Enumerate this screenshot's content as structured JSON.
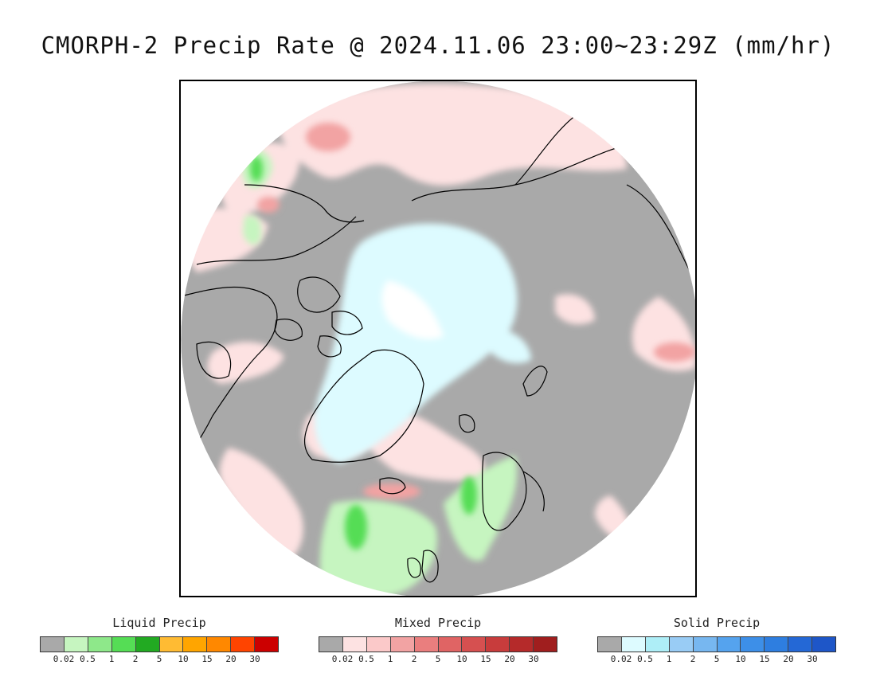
{
  "title": "CMORPH-2 Precip Rate @ 2024.11.06 23:00~23:29Z (mm/hr)",
  "map": {
    "projection": "north-polar-stereographic",
    "background_color": "#a9a9a9",
    "coastline_color": "#000000"
  },
  "legends": [
    {
      "key": "liquid",
      "title": "Liquid Precip",
      "colors": [
        "#a9a9a9",
        "#c6f5c0",
        "#8ee88a",
        "#55dd55",
        "#22aa22",
        "#ffbb33",
        "#ffa500",
        "#ff8800",
        "#ff4400",
        "#cc0000"
      ],
      "ticks": [
        "0.02",
        "0.5",
        "1",
        "2",
        "5",
        "10",
        "15",
        "20",
        "30"
      ]
    },
    {
      "key": "mixed",
      "title": "Mixed Precip",
      "colors": [
        "#a9a9a9",
        "#fde2e2",
        "#fbc9c9",
        "#f2a3a3",
        "#ea7e7e",
        "#e06464",
        "#d65050",
        "#c83c3c",
        "#b52a2a",
        "#a01e1e"
      ],
      "ticks": [
        "0.02",
        "0.5",
        "1",
        "2",
        "5",
        "10",
        "15",
        "20",
        "30"
      ]
    },
    {
      "key": "solid",
      "title": "Solid Precip",
      "colors": [
        "#a9a9a9",
        "#ddfbff",
        "#aeeef7",
        "#99ccf5",
        "#77b7f0",
        "#55a3ee",
        "#3d8fe8",
        "#2e7ee0",
        "#2468d6",
        "#1e56c8"
      ],
      "ticks": [
        "0.02",
        "0.5",
        "1",
        "2",
        "5",
        "10",
        "15",
        "20",
        "30"
      ]
    }
  ]
}
